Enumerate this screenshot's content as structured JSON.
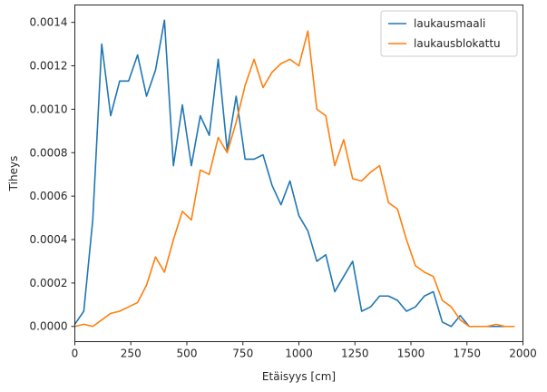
{
  "chart_data": {
    "type": "line",
    "xlabel": "Etäisyys [cm]",
    "ylabel": "Tiheys",
    "xlim": [
      0,
      2000
    ],
    "ylim": [
      -7e-05,
      0.00148
    ],
    "xticks": [
      0,
      250,
      500,
      750,
      1000,
      1250,
      1500,
      1750,
      2000
    ],
    "xtick_labels": [
      "0",
      "250",
      "500",
      "750",
      "1000",
      "1250",
      "1500",
      "1750",
      "2000"
    ],
    "yticks": [
      0,
      0.0002,
      0.0004,
      0.0006,
      0.0008,
      0.001,
      0.0012,
      0.0014
    ],
    "ytick_labels": [
      "0.0000",
      "0.0002",
      "0.0004",
      "0.0006",
      "0.0008",
      "0.0010",
      "0.0012",
      "0.0014"
    ],
    "grid": false,
    "legend_position": "top-right",
    "series": [
      {
        "name": "laukausmaali",
        "color": "#1f77b4",
        "x": [
          0,
          40,
          80,
          120,
          160,
          200,
          240,
          280,
          320,
          360,
          400,
          440,
          480,
          520,
          560,
          600,
          640,
          680,
          720,
          760,
          800,
          840,
          880,
          920,
          960,
          1000,
          1040,
          1080,
          1120,
          1160,
          1200,
          1240,
          1280,
          1320,
          1360,
          1400,
          1440,
          1480,
          1520,
          1560,
          1600,
          1640,
          1680,
          1720,
          1760,
          1800,
          1840,
          1880,
          1920,
          1960
        ],
        "y": [
          1e-05,
          7e-05,
          0.00049,
          0.0013,
          0.00097,
          0.00113,
          0.00113,
          0.00125,
          0.00106,
          0.00118,
          0.00141,
          0.00074,
          0.00102,
          0.00074,
          0.00097,
          0.00088,
          0.00123,
          0.00081,
          0.00106,
          0.00077,
          0.00077,
          0.00079,
          0.00065,
          0.00056,
          0.00067,
          0.00051,
          0.00044,
          0.0003,
          0.00033,
          0.00016,
          0.00023,
          0.0003,
          7e-05,
          9e-05,
          0.00014,
          0.00014,
          0.00012,
          7e-05,
          9e-05,
          0.00014,
          0.00016,
          2e-05,
          0.0,
          5e-05,
          0.0,
          0.0,
          0.0,
          0.0,
          0.0,
          0.0
        ]
      },
      {
        "name": "laukausblokattu",
        "color": "#ff7f0e",
        "x": [
          0,
          40,
          80,
          120,
          160,
          200,
          240,
          280,
          320,
          360,
          400,
          440,
          480,
          520,
          560,
          600,
          640,
          680,
          720,
          760,
          800,
          840,
          880,
          920,
          960,
          1000,
          1040,
          1080,
          1120,
          1160,
          1200,
          1240,
          1280,
          1320,
          1360,
          1400,
          1440,
          1480,
          1520,
          1560,
          1600,
          1640,
          1680,
          1720,
          1760,
          1800,
          1840,
          1880,
          1920,
          1960
        ],
        "y": [
          0.0,
          1e-05,
          0.0,
          3e-05,
          6e-05,
          7e-05,
          9e-05,
          0.00011,
          0.00019,
          0.00032,
          0.00025,
          0.0004,
          0.00053,
          0.00049,
          0.00072,
          0.0007,
          0.00087,
          0.0008,
          0.00094,
          0.00111,
          0.00123,
          0.0011,
          0.00117,
          0.00121,
          0.00123,
          0.0012,
          0.00136,
          0.001,
          0.00097,
          0.00074,
          0.00086,
          0.00068,
          0.00067,
          0.00071,
          0.00074,
          0.00057,
          0.00054,
          0.0004,
          0.00028,
          0.00025,
          0.00023,
          0.00012,
          9e-05,
          3e-05,
          0.0,
          0.0,
          0.0,
          1e-05,
          0.0,
          0.0
        ]
      }
    ]
  }
}
